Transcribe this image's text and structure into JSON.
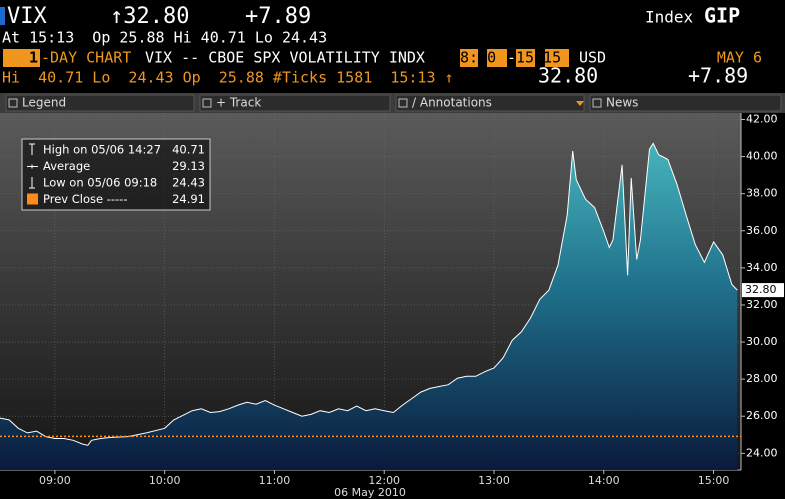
{
  "header": {
    "symbol": "VIX",
    "last": "↑32.80",
    "change": "+7.89",
    "asset_type": "Index",
    "command": "GIP",
    "quote_line": "At 15:13  Op 25.88 Hi 40.71 Lo 24.43",
    "period": "1",
    "period_suffix": "-DAY CHART",
    "description": "VIX -- CBOE SPX VOLATILITY INDX",
    "session_start": "8:30",
    "session_sep": "-",
    "session_end": "15:15",
    "currency": "USD",
    "date": "MAY 6",
    "stats_line": "Hi  40.71 Lo  24.43 Op  25.88 #Ticks 1581  15:13 ↑",
    "stats_last": "32.80",
    "stats_change": "+7.89"
  },
  "toolbar": [
    "Legend",
    "+ Track",
    "/ Annotations",
    "News"
  ],
  "chart_data": {
    "type": "area",
    "x_label": "06 May 2010",
    "x": [
      510,
      515,
      520,
      525,
      530,
      535,
      540,
      545,
      550,
      555,
      558,
      560,
      565,
      570,
      580,
      590,
      600,
      605,
      610,
      615,
      620,
      625,
      630,
      635,
      640,
      645,
      650,
      655,
      660,
      665,
      670,
      675,
      680,
      685,
      690,
      695,
      700,
      705,
      710,
      715,
      720,
      725,
      730,
      735,
      740,
      745,
      750,
      755,
      760,
      765,
      770,
      775,
      780,
      785,
      790,
      795,
      800,
      805,
      810,
      815,
      820,
      823,
      825,
      830,
      835,
      840,
      843,
      845,
      850,
      853,
      855,
      858,
      860,
      865,
      867,
      870,
      875,
      880,
      885,
      890,
      895,
      900,
      905,
      910,
      913
    ],
    "series": [
      {
        "name": "VIX",
        "color": "#ffffff",
        "values": [
          25.9,
          25.8,
          25.35,
          25.1,
          25.2,
          24.9,
          24.8,
          24.8,
          24.7,
          24.5,
          24.43,
          24.7,
          24.8,
          24.85,
          24.9,
          25.1,
          25.35,
          25.8,
          26.05,
          26.3,
          26.4,
          26.2,
          26.25,
          26.4,
          26.6,
          26.75,
          26.65,
          26.85,
          26.6,
          26.4,
          26.2,
          26.0,
          26.1,
          26.3,
          26.2,
          26.4,
          26.3,
          26.55,
          26.3,
          26.4,
          26.3,
          26.2,
          26.6,
          26.95,
          27.3,
          27.5,
          27.6,
          27.7,
          28.05,
          28.15,
          28.15,
          28.4,
          28.6,
          29.15,
          30.1,
          30.55,
          31.3,
          32.3,
          32.8,
          34.15,
          36.85,
          40.3,
          38.75,
          37.7,
          37.25,
          35.95,
          35.1,
          35.5,
          39.55,
          33.6,
          38.85,
          34.45,
          35.5,
          40.4,
          40.71,
          40.1,
          39.85,
          38.5,
          36.85,
          35.25,
          34.3,
          35.4,
          34.7,
          33.1,
          32.8
        ]
      }
    ],
    "xlim": [
      510,
      915
    ],
    "xticks": [
      {
        "value": 540,
        "label": "09:00"
      },
      {
        "value": 600,
        "label": "10:00"
      },
      {
        "value": 660,
        "label": "11:00"
      },
      {
        "value": 720,
        "label": "12:00"
      },
      {
        "value": 780,
        "label": "13:00"
      },
      {
        "value": 840,
        "label": "14:00"
      },
      {
        "value": 900,
        "label": "15:00"
      }
    ],
    "ylim": [
      23.1,
      42.35
    ],
    "yticks": [
      {
        "value": 24,
        "label": "24.00"
      },
      {
        "value": 26,
        "label": "26.00"
      },
      {
        "value": 28,
        "label": "28.00"
      },
      {
        "value": 30,
        "label": "30.00"
      },
      {
        "value": 32,
        "label": "32.00"
      },
      {
        "value": 34,
        "label": "34.00"
      },
      {
        "value": 36,
        "label": "36.00"
      },
      {
        "value": 38,
        "label": "38.00"
      },
      {
        "value": 40,
        "label": "40.00"
      },
      {
        "value": 42,
        "label": "42.00"
      }
    ],
    "legend": [
      {
        "label": "High on 05/06 14:27",
        "value": 40.71
      },
      {
        "label": "Average",
        "value": 29.13
      },
      {
        "label": "Low on 05/06 09:18",
        "value": 24.43
      },
      {
        "label": "Prev Close -----",
        "value": 24.91
      }
    ],
    "prev_close_color": "#ff8c1a",
    "last_tag": {
      "value": 32.8,
      "label": "32.80"
    }
  }
}
